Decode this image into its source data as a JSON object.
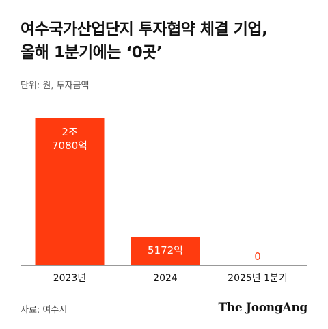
{
  "title_lines": [
    "여수국가산업단지 투자협약 체결 기업,",
    "올해 1분기에는 ‘0곳’"
  ],
  "unit_label": "단위: 원, 투자금액",
  "source_label": "자료: 여수시",
  "logo_text": "The JoongAng",
  "colors": {
    "bar": "#FF3B0F",
    "label_inside": "#ffffff",
    "label_outside": "#FF3B0F",
    "axis": "#999999"
  },
  "chart_data": {
    "type": "bar",
    "categories": [
      "2023년",
      "2024",
      "2025년 1분기"
    ],
    "values": [
      2708000000000,
      517200000000,
      0
    ],
    "value_labels": [
      [
        "2조",
        "7080억"
      ],
      [
        "5172억"
      ],
      [
        "0"
      ]
    ],
    "title": "",
    "xlabel": "",
    "ylabel": "",
    "ylim": [
      0,
      2708000000000
    ],
    "grid": false,
    "legend": "none"
  }
}
